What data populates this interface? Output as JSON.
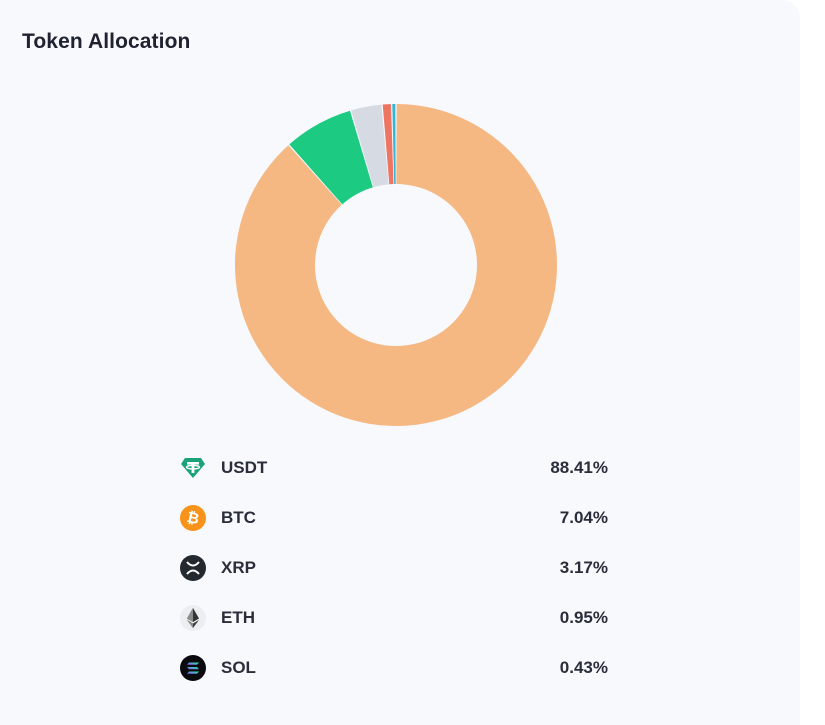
{
  "card": {
    "title": "Token Allocation"
  },
  "chart_data": {
    "type": "pie",
    "style": "donut",
    "categories": [
      "USDT",
      "BTC",
      "XRP",
      "ETH",
      "SOL"
    ],
    "values": [
      88.41,
      7.04,
      3.17,
      0.95,
      0.43
    ],
    "unit": "%",
    "colors": [
      "#f5b883",
      "#1dca82",
      "#d5dae3",
      "#ef7563",
      "#35b6d9"
    ],
    "start": "top",
    "direction": "clockwise"
  },
  "legend": [
    {
      "symbol": "USDT",
      "percent": "88.41%",
      "icon": "tether-icon"
    },
    {
      "symbol": "BTC",
      "percent": "7.04%",
      "icon": "bitcoin-icon"
    },
    {
      "symbol": "XRP",
      "percent": "3.17%",
      "icon": "xrp-icon"
    },
    {
      "symbol": "ETH",
      "percent": "0.95%",
      "icon": "ethereum-icon"
    },
    {
      "symbol": "SOL",
      "percent": "0.43%",
      "icon": "solana-icon"
    }
  ]
}
